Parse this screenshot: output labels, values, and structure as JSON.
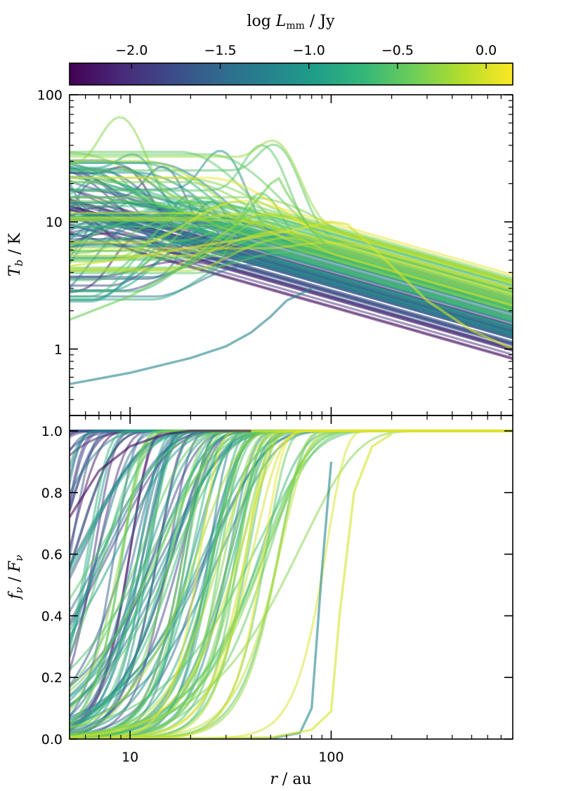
{
  "colorbar": {
    "label_pre": "log ",
    "label_var": "L",
    "label_sub": "mm",
    "label_post": " / Jy",
    "ticks": [
      -2.0,
      -1.5,
      -1.0,
      -0.5,
      0.0
    ],
    "tick_labels": [
      "−2.0",
      "−1.5",
      "−1.0",
      "−0.5",
      "0.0"
    ],
    "range": [
      -2.35,
      0.15
    ],
    "colormap": [
      "#440154",
      "#482878",
      "#3e4989",
      "#31688e",
      "#26828e",
      "#1f9e89",
      "#35b779",
      "#6ece58",
      "#b5de2b",
      "#fde725"
    ]
  },
  "chart_data": [
    {
      "type": "line",
      "panel": "top",
      "ylabel_var": "T",
      "ylabel_sub": "b",
      "ylabel_unit": " / K",
      "xscale": "log",
      "yscale": "log",
      "xlim": [
        5,
        800
      ],
      "ylim": [
        0.3,
        100
      ],
      "y_tick_labels": [
        "100",
        "10",
        "1"
      ],
      "grid": false,
      "series_style": "many semi-transparent curves colored by log Lmm (viridis)",
      "highlighted_series": [
        {
          "logL": -1.2,
          "x": [
            5,
            10,
            20,
            30,
            40,
            50,
            60,
            80
          ],
          "y": [
            0.53,
            0.65,
            0.85,
            1.05,
            1.35,
            1.8,
            2.4,
            3.0
          ]
        },
        {
          "logL": -0.4,
          "x": [
            5,
            10,
            20,
            30,
            40,
            50,
            55,
            60,
            80,
            100
          ],
          "y": [
            1.7,
            2.6,
            4.8,
            8.0,
            13.0,
            20.0,
            22.0,
            17.0,
            8.5,
            6.0
          ]
        },
        {
          "logL": 0.0,
          "x": [
            5,
            10,
            20,
            40,
            60,
            80,
            100,
            120,
            150,
            200,
            300,
            500,
            800
          ],
          "y": [
            4.5,
            5.2,
            6.3,
            7.5,
            8.4,
            9.3,
            10.0,
            9.6,
            7.0,
            4.5,
            2.4,
            1.4,
            1.0
          ]
        }
      ]
    },
    {
      "type": "line",
      "panel": "bottom",
      "ylabel_var_1": "f",
      "ylabel_sub_1": "ν",
      "ylabel_var_2": "F",
      "ylabel_sub_2": "ν",
      "xlabel_var": "r",
      "xlabel_unit": " / au",
      "xscale": "log",
      "yscale": "linear",
      "xlim": [
        5,
        800
      ],
      "ylim": [
        0.0,
        1.05
      ],
      "x_tick_labels": [
        "10",
        "100"
      ],
      "y_tick_labels": [
        "1.0",
        "0.8",
        "0.6",
        "0.4",
        "0.2",
        "0.0"
      ],
      "grid": false,
      "series_style": "many semi-transparent cumulative curves rising from 0 to 1, colored by log Lmm (viridis)",
      "highlighted_series": [
        {
          "logL": -2.3,
          "x": [
            5,
            7,
            10,
            15,
            20,
            40
          ],
          "y": [
            0.72,
            0.87,
            0.95,
            0.99,
            1.0,
            1.0
          ]
        },
        {
          "logL": -1.2,
          "x": [
            5,
            30,
            50,
            70,
            80,
            90,
            100
          ],
          "y": [
            0.0,
            0.0,
            0.002,
            0.02,
            0.1,
            0.55,
            0.9
          ]
        },
        {
          "logL": 0.0,
          "x": [
            5,
            50,
            80,
            100,
            110,
            130,
            160,
            200
          ],
          "y": [
            0.0,
            0.005,
            0.03,
            0.09,
            0.4,
            0.8,
            0.95,
            0.99
          ]
        }
      ]
    }
  ]
}
